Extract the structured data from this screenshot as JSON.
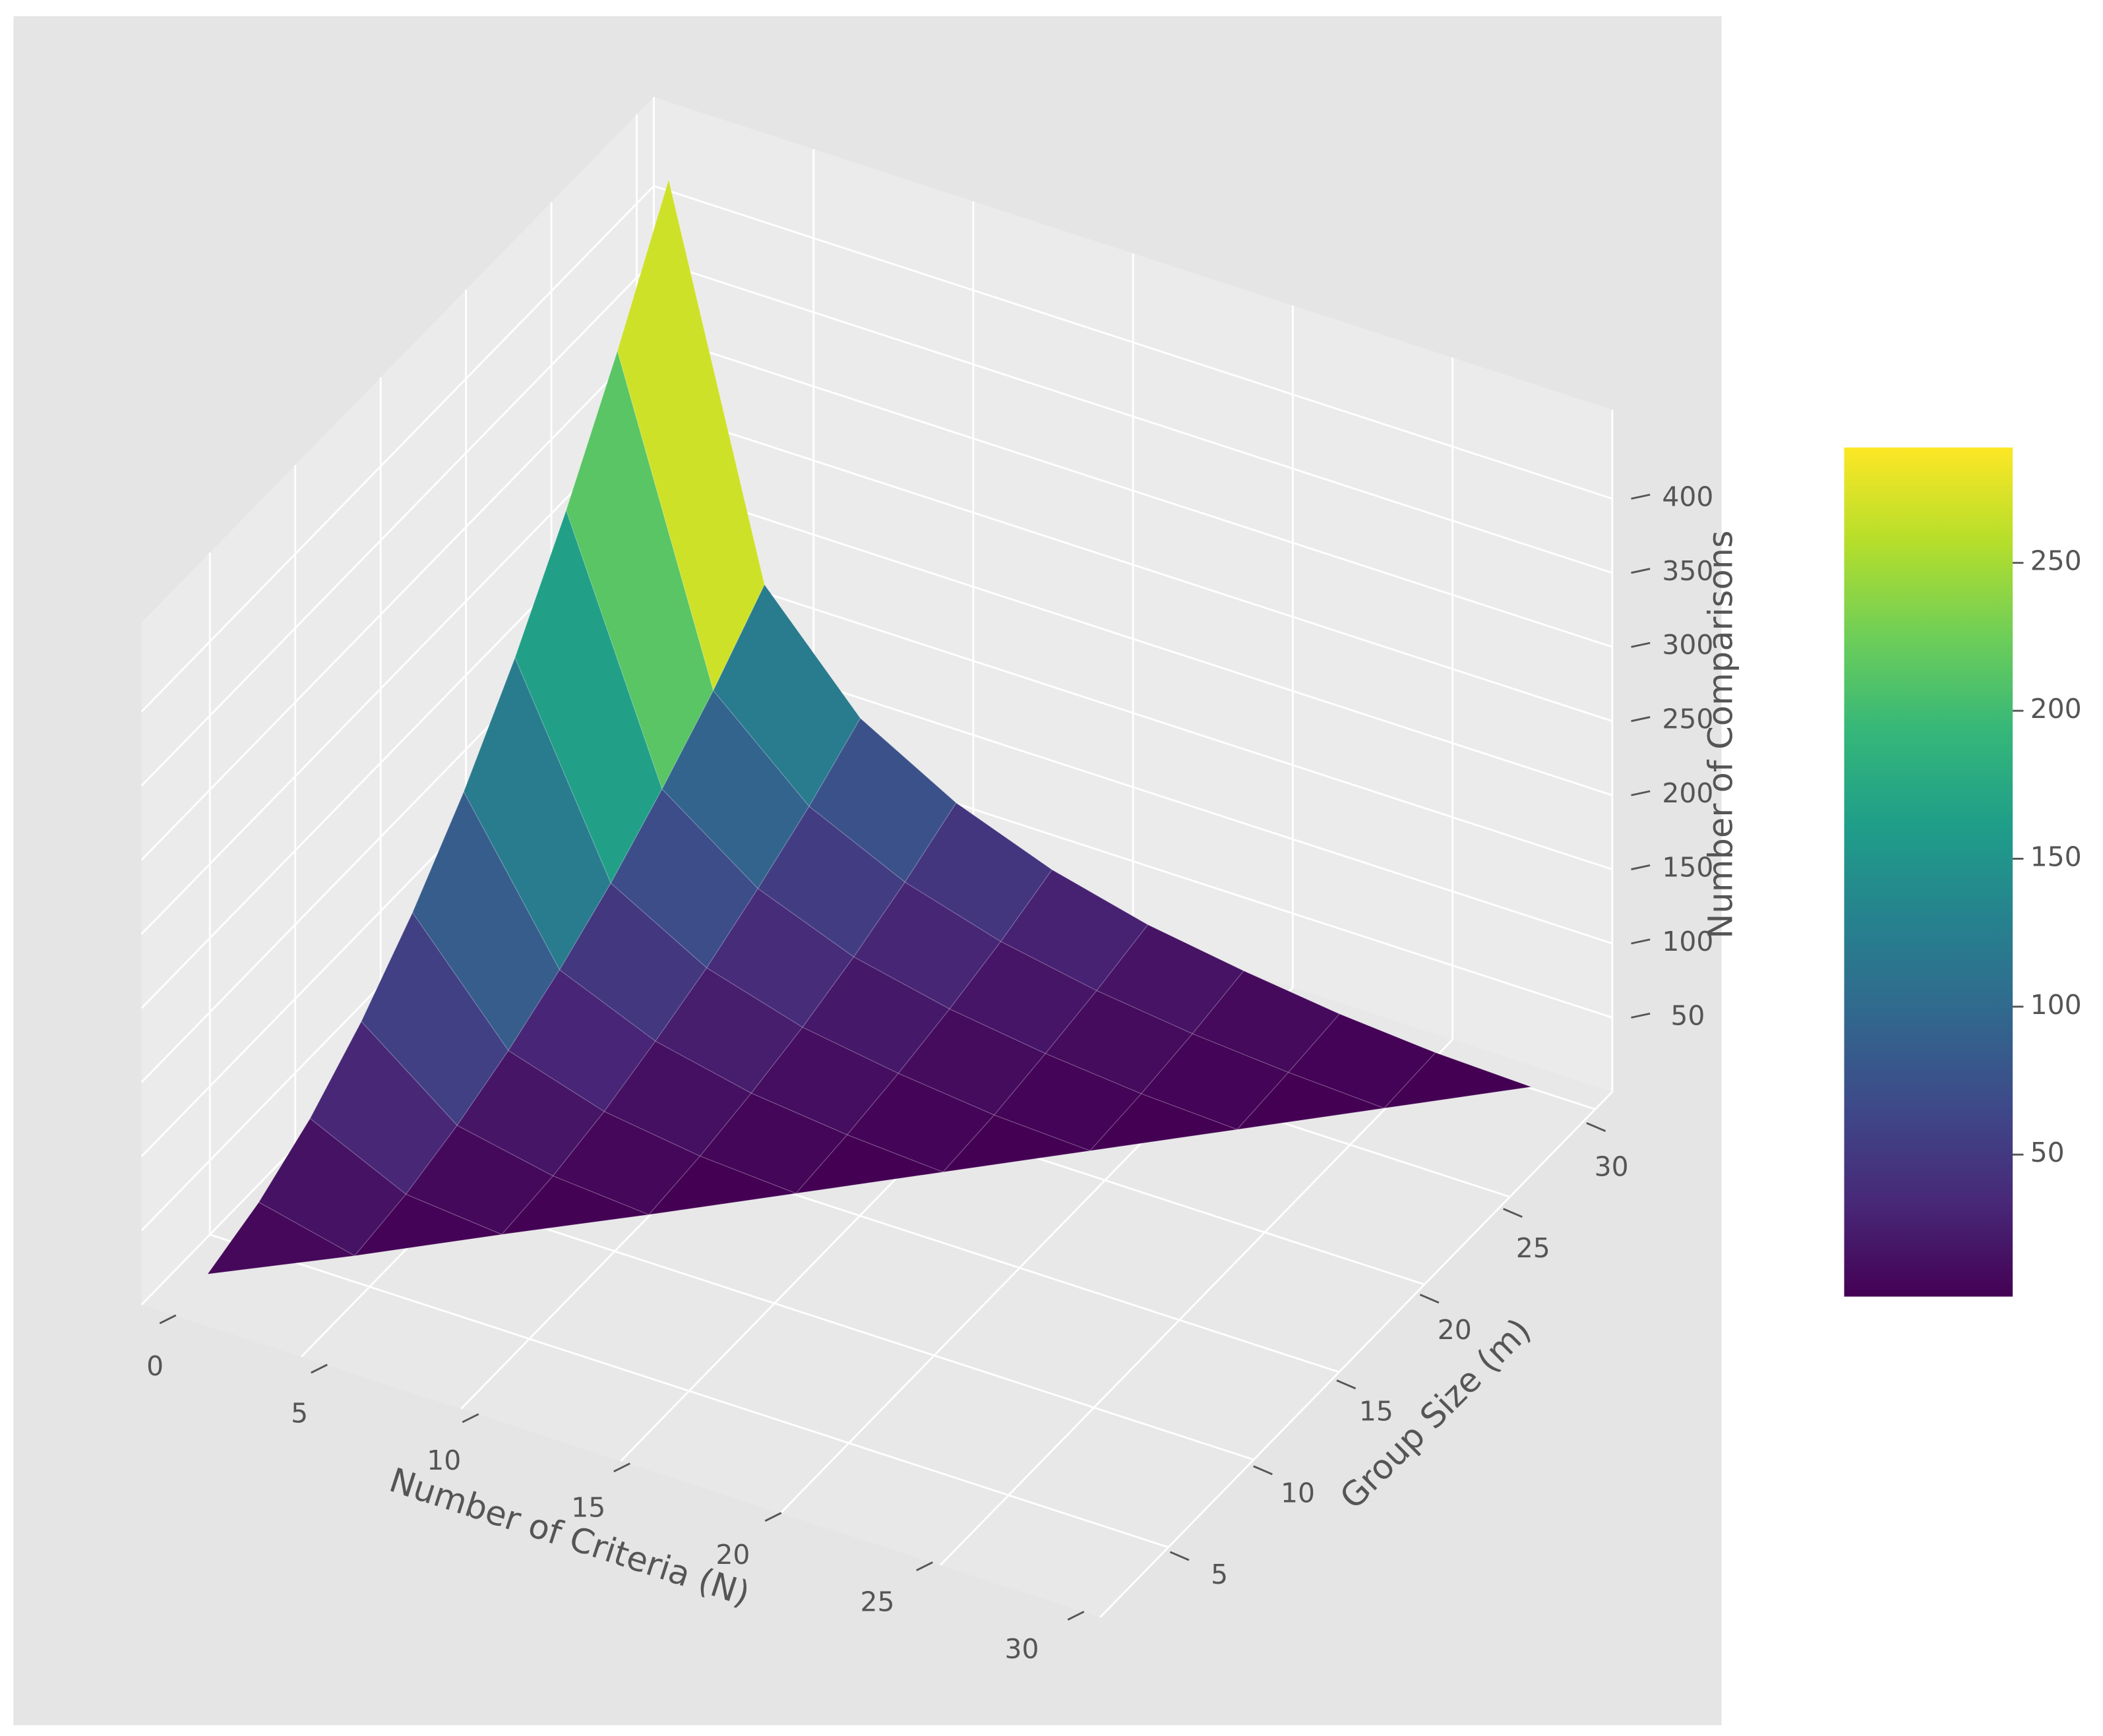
{
  "chart_data": {
    "type": "surface",
    "x_label": "Number of Criteria (N)",
    "y_label": "Group Size (m)",
    "z_label": "Number of Comparisons",
    "colormap": "viridis",
    "grid": true,
    "x": [
      1,
      4,
      7,
      10,
      13,
      16,
      19,
      22,
      25,
      28
    ],
    "y": [
      3,
      6,
      9,
      12,
      15,
      18,
      21,
      24,
      27,
      30
    ],
    "z": [
      [
        4,
        null,
        null,
        null,
        null,
        null,
        null,
        null,
        null,
        null
      ],
      [
        17,
        2,
        null,
        null,
        null,
        null,
        null,
        null,
        null,
        null
      ],
      [
        38,
        8,
        2,
        null,
        null,
        null,
        null,
        null,
        null,
        null
      ],
      [
        68,
        19,
        6,
        1,
        null,
        null,
        null,
        null,
        null,
        null
      ],
      [
        106,
        34,
        14,
        5,
        1,
        null,
        null,
        null,
        null,
        null
      ],
      [
        152,
        53,
        26,
        12,
        5,
        1,
        null,
        null,
        null,
        null
      ],
      [
        207,
        76,
        40,
        21,
        11,
        4,
        1,
        null,
        null,
        null
      ],
      [
        271,
        104,
        58,
        33,
        19,
        10,
        4,
        1,
        null,
        null
      ],
      [
        343,
        135,
        78,
        48,
        29,
        17,
        9,
        4,
        1,
        null
      ],
      [
        423,
        171,
        102,
        66,
        42,
        26,
        16,
        8,
        3,
        1
      ]
    ],
    "xlim": [
      0,
      30
    ],
    "xticks": [
      0,
      5,
      10,
      15,
      20,
      25,
      30
    ],
    "ylim": [
      1,
      31
    ],
    "yticks": [
      5,
      10,
      15,
      20,
      25,
      30
    ],
    "zlim": [
      0,
      460
    ],
    "zticks": [
      50,
      100,
      150,
      200,
      250,
      300,
      350,
      400
    ],
    "colorbar": {
      "clim": [
        2,
        289
      ],
      "ticks": [
        50,
        100,
        150,
        200,
        250
      ]
    }
  }
}
